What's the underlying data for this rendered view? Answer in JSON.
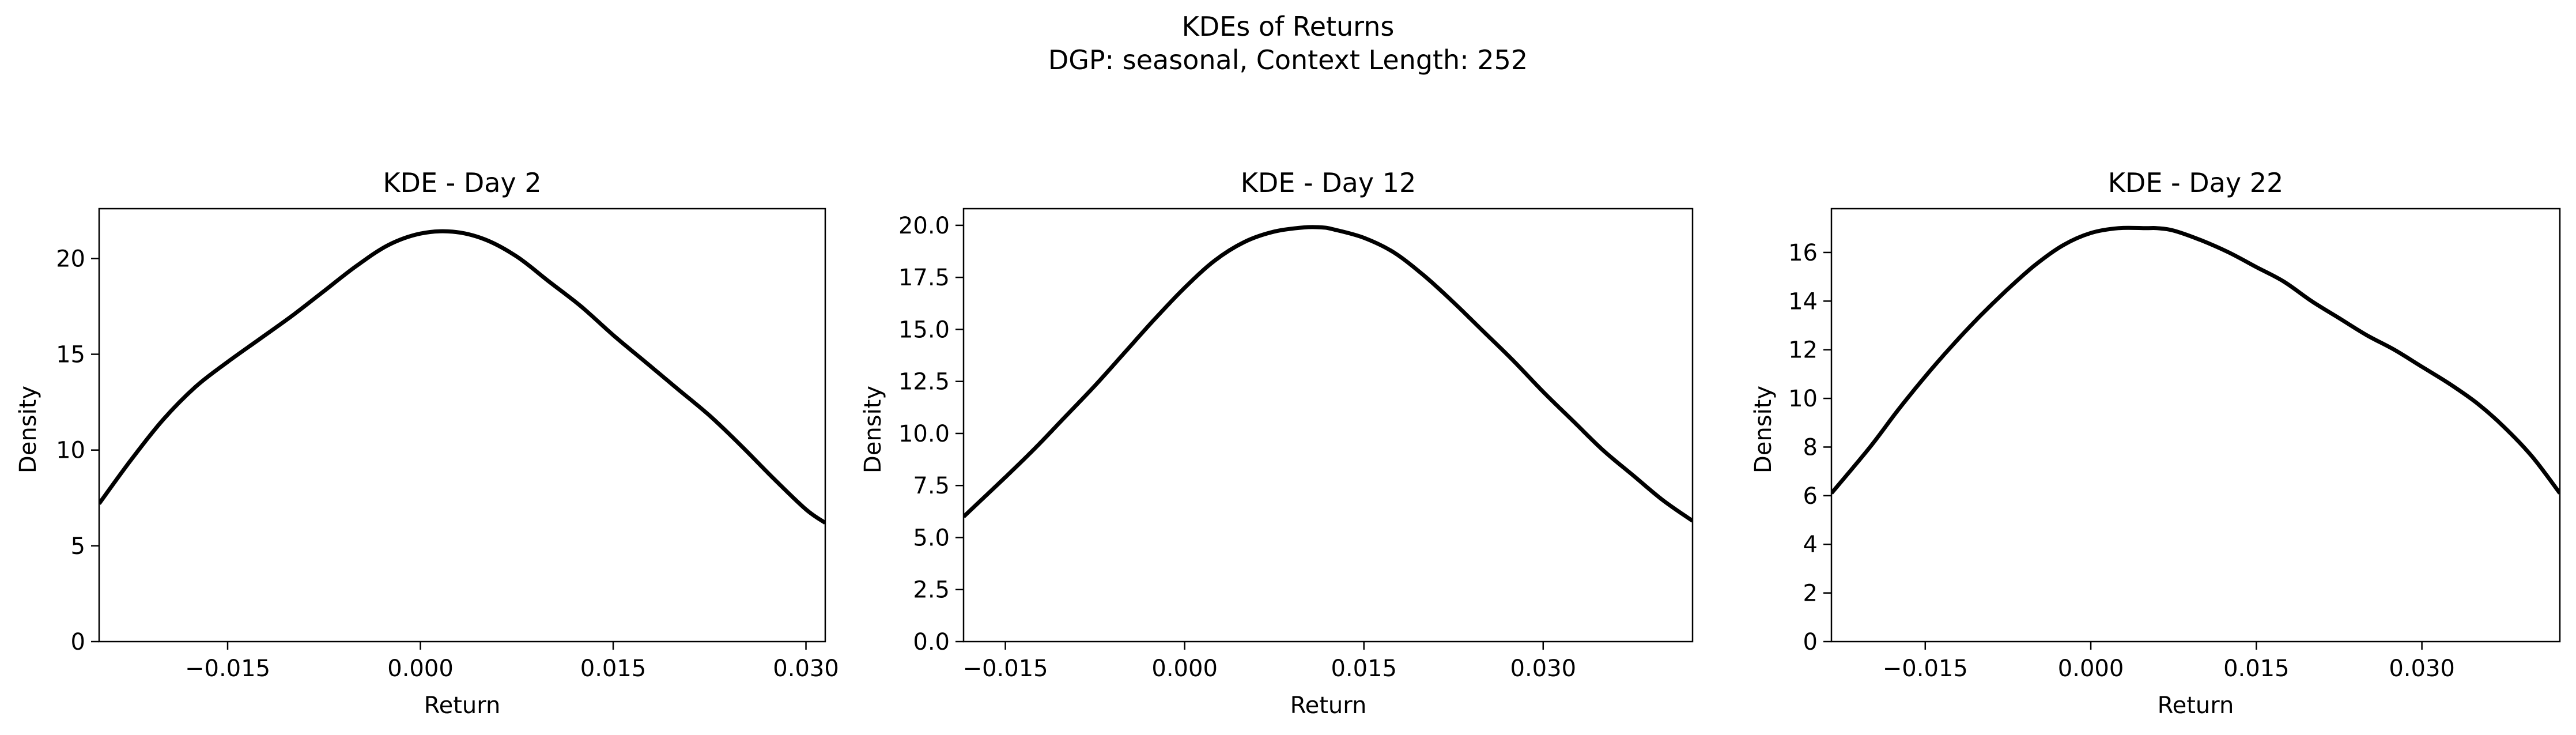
{
  "figure": {
    "suptitle_line1": "KDEs of Returns",
    "suptitle_line2": "DGP: seasonal, Context Length: 252",
    "line_color": "#000000",
    "background": "#ffffff"
  },
  "chart_data": [
    {
      "type": "line",
      "title": "KDE - Day 2",
      "xlabel": "Return",
      "ylabel": "Density",
      "xlim": [
        -0.025,
        0.0315
      ],
      "ylim": [
        0,
        22.6
      ],
      "xticks": [
        -0.015,
        0.0,
        0.015,
        0.03
      ],
      "xtick_labels": [
        "−0.015",
        "0.000",
        "0.015",
        "0.030"
      ],
      "yticks": [
        0,
        5,
        10,
        15,
        20
      ],
      "ytick_labels": [
        "0",
        "5",
        "10",
        "15",
        "20"
      ],
      "grid": false,
      "series": [
        {
          "x": [
            -0.025,
            -0.0225,
            -0.02,
            -0.0175,
            -0.015,
            -0.0125,
            -0.01,
            -0.0075,
            -0.005,
            -0.0025,
            0.0,
            0.0025,
            0.005,
            0.0075,
            0.01,
            0.0125,
            0.015,
            0.0175,
            0.02,
            0.0225,
            0.025,
            0.0275,
            0.03,
            0.0315
          ],
          "y": [
            7.2,
            9.5,
            11.6,
            13.3,
            14.6,
            15.8,
            17.0,
            18.3,
            19.6,
            20.7,
            21.3,
            21.4,
            21.0,
            20.1,
            18.8,
            17.5,
            16.0,
            14.6,
            13.2,
            11.8,
            10.2,
            8.5,
            6.9,
            6.2
          ]
        }
      ]
    },
    {
      "type": "line",
      "title": "KDE - Day 12",
      "xlabel": "Return",
      "ylabel": "Density",
      "xlim": [
        -0.0185,
        0.0425
      ],
      "ylim": [
        0,
        20.8
      ],
      "xticks": [
        -0.015,
        0.0,
        0.015,
        0.03
      ],
      "xtick_labels": [
        "−0.015",
        "0.000",
        "0.015",
        "0.030"
      ],
      "yticks": [
        0.0,
        2.5,
        5.0,
        7.5,
        10.0,
        12.5,
        15.0,
        17.5,
        20.0
      ],
      "ytick_labels": [
        "0.0",
        "2.5",
        "5.0",
        "7.5",
        "10.0",
        "12.5",
        "15.0",
        "17.5",
        "20.0"
      ],
      "grid": false,
      "series": [
        {
          "x": [
            -0.0185,
            -0.015,
            -0.0125,
            -0.01,
            -0.0075,
            -0.005,
            -0.0025,
            0.0,
            0.0025,
            0.005,
            0.0075,
            0.01,
            0.0115,
            0.0125,
            0.015,
            0.0175,
            0.02,
            0.0225,
            0.025,
            0.0275,
            0.03,
            0.0325,
            0.035,
            0.0375,
            0.04,
            0.0425
          ],
          "y": [
            6.0,
            7.9,
            9.3,
            10.8,
            12.3,
            13.9,
            15.5,
            17.0,
            18.3,
            19.2,
            19.7,
            19.9,
            19.9,
            19.8,
            19.4,
            18.7,
            17.6,
            16.3,
            14.9,
            13.5,
            12.0,
            10.6,
            9.2,
            8.0,
            6.8,
            5.8
          ]
        }
      ]
    },
    {
      "type": "line",
      "title": "KDE - Day 22",
      "xlabel": "Return",
      "ylabel": "Density",
      "xlim": [
        -0.0235,
        0.0425
      ],
      "ylim": [
        0,
        17.8
      ],
      "xticks": [
        -0.015,
        0.0,
        0.015,
        0.03
      ],
      "xtick_labels": [
        "−0.015",
        "0.000",
        "0.015",
        "0.030"
      ],
      "yticks": [
        0,
        2,
        4,
        6,
        8,
        10,
        12,
        14,
        16
      ],
      "ytick_labels": [
        "0",
        "2",
        "4",
        "6",
        "8",
        "10",
        "12",
        "14",
        "16"
      ],
      "grid": false,
      "series": [
        {
          "x": [
            -0.0235,
            -0.02,
            -0.0175,
            -0.015,
            -0.0125,
            -0.01,
            -0.0075,
            -0.005,
            -0.0025,
            0.0,
            0.0025,
            0.005,
            0.006,
            0.0075,
            0.01,
            0.0125,
            0.015,
            0.0175,
            0.02,
            0.0225,
            0.025,
            0.0275,
            0.03,
            0.0325,
            0.035,
            0.0375,
            0.04,
            0.0425
          ],
          "y": [
            6.1,
            8.0,
            9.5,
            10.9,
            12.2,
            13.4,
            14.5,
            15.5,
            16.3,
            16.8,
            17.0,
            17.0,
            17.0,
            16.9,
            16.5,
            16.0,
            15.4,
            14.8,
            14.0,
            13.3,
            12.6,
            12.0,
            11.3,
            10.6,
            9.8,
            8.8,
            7.6,
            6.1
          ]
        }
      ]
    }
  ]
}
